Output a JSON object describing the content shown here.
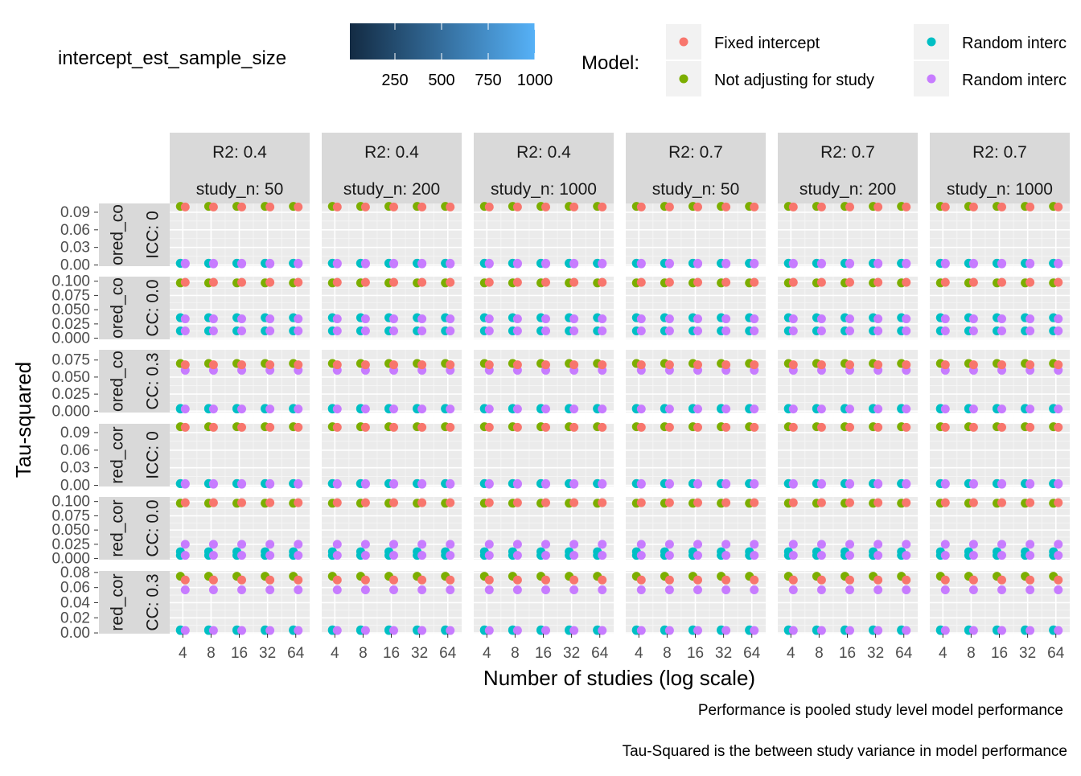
{
  "chart_data": {
    "type": "scatter",
    "xlabel": "Number of studies (log scale)",
    "ylabel": "Tau-squared",
    "x_scale": "log2",
    "x_ticks": [
      4,
      8,
      16,
      32,
      64
    ],
    "captions": [
      "Performance is pooled study level model performance",
      "Tau-Squared is the between study variance in model performance"
    ],
    "legend": {
      "model_title": "Model:",
      "models": [
        {
          "name": "Fixed intercept",
          "color": "#F8766D"
        },
        {
          "name": "Not adjusting for study",
          "color": "#7CAE00"
        },
        {
          "name": "Random interc",
          "color": "#00BFC4"
        },
        {
          "name": "Random interc",
          "color": "#C77CFF"
        }
      ],
      "gradient_title": "intercept_est_sample_size",
      "gradient_colors": [
        "#132B43",
        "#56B1F7"
      ],
      "gradient_ticks": [
        "250",
        "500",
        "750",
        "1000"
      ]
    },
    "col_strips": [
      {
        "r2": "R2: 0.4",
        "n": "study_n: 50"
      },
      {
        "r2": "R2: 0.4",
        "n": "study_n: 200"
      },
      {
        "r2": "R2: 0.4",
        "n": "study_n: 1000"
      },
      {
        "r2": "R2: 0.7",
        "n": "study_n: 50"
      },
      {
        "r2": "R2: 0.7",
        "n": "study_n: 200"
      },
      {
        "r2": "R2: 0.7",
        "n": "study_n: 1000"
      }
    ],
    "rows": [
      {
        "strip_outer": "ored_co",
        "strip_inner": "ICC: 0",
        "ylim": [
          -0.002,
          0.105
        ],
        "yticks": [
          0.0,
          0.03,
          0.06,
          0.09
        ],
        "ytick_labels": [
          "0.00",
          "0.03",
          "0.06",
          "0.09"
        ],
        "series": {
          "fixed": 0.099,
          "noadj": 0.1,
          "random_a": 0.003,
          "random_b": 0.002
        }
      },
      {
        "strip_outer": "ored_co",
        "strip_inner": "CC: 0.0",
        "ylim": [
          -0.002,
          0.108
        ],
        "yticks": [
          0.0,
          0.025,
          0.05,
          0.075,
          0.1
        ],
        "ytick_labels": [
          "0.000",
          "0.025",
          "0.050",
          "0.075",
          "0.100"
        ],
        "series": {
          "fixed": 0.098,
          "noadj": 0.097,
          "random_a": 0.036,
          "random_b": 0.034
        }
      },
      {
        "strip_outer": "ored_co",
        "strip_inner": "CC: 0.3",
        "ylim": [
          -0.002,
          0.09
        ],
        "yticks": [
          0.0,
          0.025,
          0.05,
          0.075
        ],
        "ytick_labels": [
          "0.000",
          "0.025",
          "0.050",
          "0.075"
        ],
        "series": {
          "fixed": 0.068,
          "noadj": 0.07,
          "random_a": 0.004,
          "random_b": 0.06
        }
      },
      {
        "strip_outer": "red_cor",
        "strip_inner": "ICC: 0",
        "ylim": [
          -0.002,
          0.105
        ],
        "yticks": [
          0.0,
          0.03,
          0.06,
          0.09
        ],
        "ytick_labels": [
          "0.00",
          "0.03",
          "0.06",
          "0.09"
        ],
        "series": {
          "fixed": 0.099,
          "noadj": 0.1,
          "random_a": 0.003,
          "random_b": 0.002
        }
      },
      {
        "strip_outer": "red_cor",
        "strip_inner": "CC: 0.0",
        "ylim": [
          -0.002,
          0.108
        ],
        "yticks": [
          0.0,
          0.025,
          0.05,
          0.075,
          0.1
        ],
        "ytick_labels": [
          "0.000",
          "0.025",
          "0.050",
          "0.075",
          "0.100"
        ],
        "series": {
          "fixed": 0.098,
          "noadj": 0.097,
          "random_a": 0.012,
          "random_b": 0.025
        }
      },
      {
        "strip_outer": "red_cor",
        "strip_inner": "CC: 0.3",
        "ylim": [
          -0.001,
          0.082
        ],
        "yticks": [
          0.0,
          0.02,
          0.04,
          0.06,
          0.08
        ],
        "ytick_labels": [
          "0.00",
          "0.02",
          "0.04",
          "0.06",
          "0.08"
        ],
        "series": {
          "fixed": 0.07,
          "noadj": 0.075,
          "random_a": 0.004,
          "random_b": 0.057
        }
      }
    ]
  }
}
